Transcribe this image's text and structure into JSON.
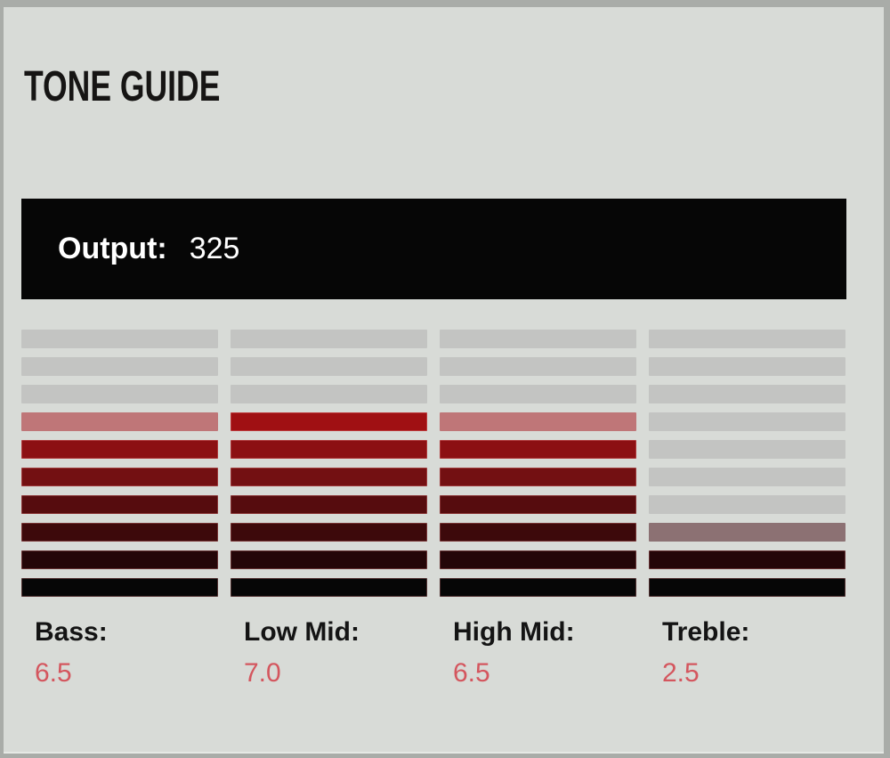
{
  "panel": {
    "title": "TONE GUIDE"
  },
  "output": {
    "label": "Output:",
    "value": "325"
  },
  "meter": {
    "segments_per_band": 10,
    "scale_max": 10,
    "bands": [
      {
        "id": "bass",
        "label": "Bass:",
        "value": "6.5"
      },
      {
        "id": "low-mid",
        "label": "Low Mid:",
        "value": "7.0"
      },
      {
        "id": "high-mid",
        "label": "High Mid:",
        "value": "6.5"
      },
      {
        "id": "treble",
        "label": "Treble:",
        "value": "2.5"
      }
    ],
    "colors": {
      "unlit": "#c3c4c2",
      "full_by_row": {
        "3": "#a01013",
        "4": "#8c1013",
        "5": "#731012",
        "6": "#560c0e",
        "7": "#3d090b",
        "8": "#240608",
        "9": "#060606"
      },
      "half_by_row": {
        "3": "#bf7678",
        "7": "#8c7173"
      }
    }
  },
  "colors": {
    "panel_background": "#d8dbd7",
    "panel_border": "#a9aca8",
    "output_bar_background": "#060606",
    "output_text": "#ffffff",
    "title_text": "#161514",
    "label_text": "#141414",
    "value_text": "#d4565e"
  },
  "chart_data": {
    "type": "bar",
    "title": "TONE GUIDE",
    "categories": [
      "Bass",
      "Low Mid",
      "High Mid",
      "Treble"
    ],
    "values": [
      6.5,
      7.0,
      6.5,
      2.5
    ],
    "ylim": [
      0,
      10
    ],
    "segments_per_bar": 10,
    "annotations": [
      "Output: 325"
    ],
    "legend": "none",
    "grid": false,
    "orientation": "vertical-segmented"
  }
}
